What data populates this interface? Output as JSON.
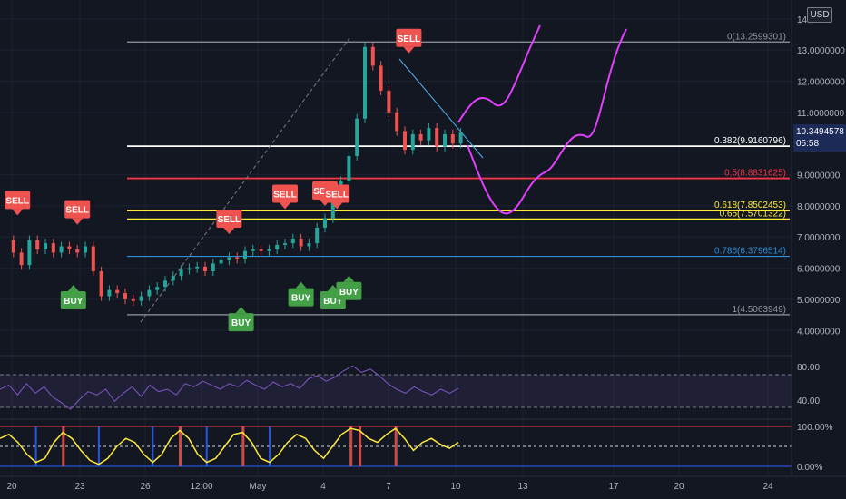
{
  "currency": "USD",
  "last_price": {
    "value": "10.3494578",
    "countdown": "05:58"
  },
  "colors": {
    "background": "#131722",
    "grid": "#1e2230",
    "candle_up": "#26a69a",
    "candle_down": "#ef5350",
    "fib_grey": "#9598a1",
    "fib_white": "#ffffff",
    "fib_red": "#f23645",
    "fib_yellow": "#ffeb3b",
    "fib_blue": "#2f8fd8",
    "drawing_magenta": "#e040fb",
    "trendline": "#4fb3e8",
    "rsi": "#7e57c2",
    "buy": "#43a047",
    "sell": "#ef5350"
  },
  "chart_data": [
    {
      "type": "candlestick",
      "ylim": [
        3.6,
        14.2
      ],
      "y_ticks": [
        "14.00",
        "13.0000000",
        "12.0000000",
        "11.0000000",
        "9.0000000",
        "8.0000000",
        "7.0000000",
        "6.0000000",
        "5.0000000",
        "4.0000000"
      ],
      "x_ticks": [
        "20",
        "23",
        "26",
        "12:00",
        "May",
        "4",
        "7",
        "10",
        "13",
        "17",
        "20",
        "24"
      ],
      "series": [
        {
          "name": "price",
          "values": [
            [
              0,
              6.9
            ],
            [
              2,
              6.5
            ],
            [
              4,
              6.1
            ],
            [
              6,
              6.9
            ],
            [
              8,
              6.6
            ],
            [
              10,
              6.8
            ],
            [
              12,
              6.5
            ],
            [
              14,
              6.7
            ],
            [
              16,
              6.6
            ],
            [
              18,
              6.5
            ],
            [
              20,
              6.7
            ],
            [
              22,
              5.9
            ],
            [
              24,
              5.1
            ],
            [
              26,
              5.3
            ],
            [
              28,
              5.2
            ],
            [
              30,
              5.0
            ],
            [
              32,
              4.95
            ],
            [
              34,
              5.1
            ],
            [
              36,
              5.3
            ],
            [
              38,
              5.4
            ],
            [
              40,
              5.6
            ],
            [
              42,
              5.75
            ],
            [
              44,
              5.95
            ],
            [
              46,
              6.0
            ],
            [
              48,
              6.05
            ],
            [
              50,
              5.9
            ],
            [
              52,
              6.15
            ],
            [
              54,
              6.25
            ],
            [
              56,
              6.35
            ],
            [
              58,
              6.3
            ],
            [
              60,
              6.55
            ],
            [
              62,
              6.6
            ],
            [
              64,
              6.55
            ],
            [
              66,
              6.6
            ],
            [
              68,
              6.75
            ],
            [
              70,
              6.8
            ],
            [
              72,
              6.95
            ],
            [
              74,
              6.7
            ],
            [
              76,
              6.8
            ],
            [
              78,
              7.3
            ],
            [
              80,
              7.6
            ],
            [
              82,
              8.2
            ],
            [
              84,
              8.8
            ],
            [
              86,
              9.6
            ],
            [
              88,
              10.8
            ],
            [
              90,
              13.1
            ],
            [
              92,
              12.5
            ],
            [
              94,
              11.7
            ],
            [
              96,
              11.0
            ],
            [
              98,
              10.4
            ],
            [
              100,
              9.8
            ],
            [
              102,
              10.3
            ],
            [
              104,
              10.1
            ],
            [
              106,
              10.5
            ],
            [
              108,
              9.9
            ],
            [
              110,
              10.3
            ],
            [
              112,
              10.0
            ],
            [
              114,
              10.35
            ]
          ]
        }
      ],
      "fibonacci": [
        {
          "label": "0(13.2599301)",
          "value": 13.2599301,
          "color": "#9598a1"
        },
        {
          "label": "0.382(9.9160796)",
          "value": 9.9160796,
          "color": "#ffffff"
        },
        {
          "label": "0.5(8.8831625)",
          "value": 8.8831625,
          "color": "#f23645"
        },
        {
          "label": "0.618(7.8502453)",
          "value": 7.8502453,
          "color": "#ffeb3b"
        },
        {
          "label": "0.65(7.5701322)",
          "value": 7.5701322,
          "color": "#ffeb3b"
        },
        {
          "label": "0.786(6.3796514)",
          "value": 6.3796514,
          "color": "#2f8fd8"
        },
        {
          "label": "1(4.5063949)",
          "value": 4.5063949,
          "color": "#9598a1"
        }
      ],
      "signals": [
        {
          "label": "SELL",
          "type": "sell",
          "x": 3,
          "price": 7.9
        },
        {
          "label": "SELL",
          "type": "sell",
          "x": 18,
          "price": 7.6
        },
        {
          "label": "BUY",
          "type": "buy",
          "x": 17,
          "price": 5.2
        },
        {
          "label": "SELL",
          "type": "sell",
          "x": 56,
          "price": 7.3
        },
        {
          "label": "BUY",
          "type": "buy",
          "x": 59,
          "price": 4.5
        },
        {
          "label": "SELL",
          "type": "sell",
          "x": 70,
          "price": 8.1
        },
        {
          "label": "BUY",
          "type": "buy",
          "x": 74,
          "price": 5.3
        },
        {
          "label": "SELL",
          "type": "sell",
          "x": 80,
          "price": 8.2
        },
        {
          "label": "BUY",
          "type": "buy",
          "x": 82,
          "price": 5.2
        },
        {
          "label": "SELL",
          "type": "sell",
          "x": 83,
          "price": 8.1
        },
        {
          "label": "BUY",
          "type": "buy",
          "x": 86,
          "price": 5.5
        },
        {
          "label": "SELL",
          "type": "sell",
          "x": 101,
          "price": 13.1
        }
      ]
    },
    {
      "type": "line",
      "name_shown": "",
      "y_ticks": [
        "80.00",
        "40.00"
      ],
      "ylim": [
        20,
        90
      ],
      "series": [
        {
          "name": "rsi",
          "values": [
            55,
            60,
            48,
            62,
            50,
            58,
            45,
            38,
            30,
            42,
            52,
            48,
            55,
            40,
            50,
            58,
            46,
            60,
            52,
            55,
            48,
            62,
            58,
            65,
            60,
            55,
            62,
            58,
            66,
            60,
            55,
            64,
            58,
            62,
            56,
            68,
            72,
            65,
            70,
            78,
            84,
            76,
            80,
            72,
            62,
            55,
            50,
            58,
            52,
            48,
            55,
            50,
            56
          ]
        }
      ]
    },
    {
      "type": "line",
      "y_ticks": [
        "100.00%",
        "0.00%"
      ],
      "ylim": [
        0,
        100
      ],
      "series": [
        {
          "name": "stoch",
          "values": [
            70,
            80,
            60,
            30,
            10,
            20,
            60,
            85,
            70,
            40,
            15,
            5,
            20,
            50,
            70,
            60,
            30,
            10,
            30,
            70,
            90,
            70,
            30,
            10,
            20,
            50,
            80,
            85,
            60,
            20,
            10,
            30,
            60,
            80,
            70,
            40,
            20,
            50,
            80,
            95,
            90,
            70,
            60,
            80,
            95,
            70,
            40,
            60,
            70,
            55,
            45,
            60
          ]
        }
      ]
    }
  ]
}
